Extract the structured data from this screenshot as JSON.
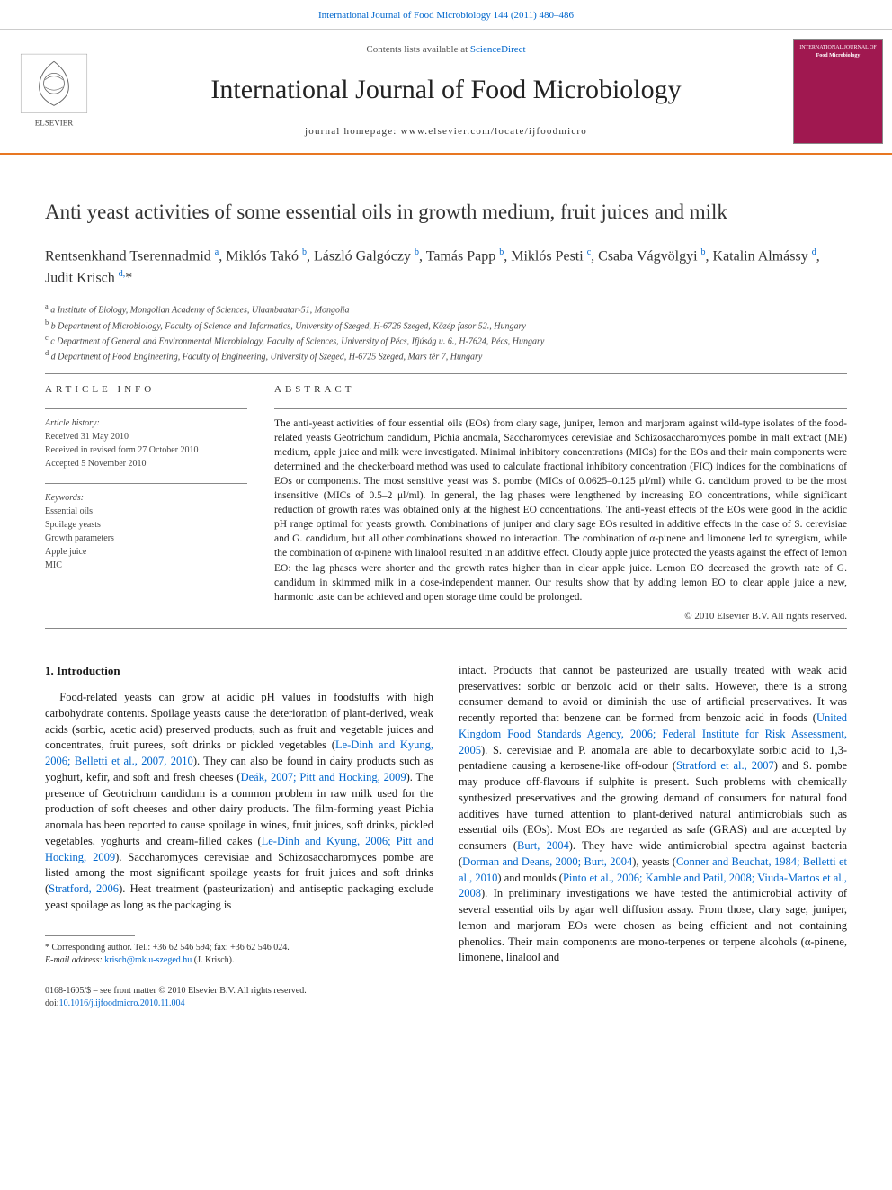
{
  "top_link": "International Journal of Food Microbiology 144 (2011) 480–486",
  "header": {
    "contents_prefix": "Contents lists available at ",
    "contents_link": "ScienceDirect",
    "journal_name": "International Journal of Food Microbiology",
    "homepage_prefix": "journal homepage: ",
    "homepage_url": "www.elsevier.com/locate/ijfoodmicro",
    "cover_label_1": "INTERNATIONAL JOURNAL OF",
    "cover_label_2": "Food Microbiology",
    "publisher": "ELSEVIER"
  },
  "article": {
    "title": "Anti yeast activities of some essential oils in growth medium, fruit juices and milk",
    "authors_html": "Rentsenkhand Tserennadmid <sup>a</sup>, Miklós Takó <sup>b</sup>, László Galgóczy <sup>b</sup>, Tamás Papp <sup>b</sup>, Miklós Pesti <sup>c</sup>, Csaba Vágvölgyi <sup>b</sup>, Katalin Almássy <sup>d</sup>, Judit Krisch <sup>d,</sup>*",
    "aff_a": "a  Institute of Biology, Mongolian Academy of Sciences, Ulaanbaatar-51, Mongolia",
    "aff_b": "b  Department of Microbiology, Faculty of Science and Informatics, University of Szeged, H-6726 Szeged, Közép fasor 52., Hungary",
    "aff_c": "c  Department of General and Environmental Microbiology, Faculty of Sciences, University of Pécs, Ifjúság u. 6., H-7624, Pécs, Hungary",
    "aff_d": "d  Department of Food Engineering, Faculty of Engineering, University of Szeged, H-6725 Szeged, Mars tér 7, Hungary"
  },
  "info": {
    "heading": "ARTICLE INFO",
    "history_label": "Article history:",
    "received": "Received 31 May 2010",
    "revised": "Received in revised form 27 October 2010",
    "accepted": "Accepted 5 November 2010",
    "keywords_label": "Keywords:",
    "kw1": "Essential oils",
    "kw2": "Spoilage yeasts",
    "kw3": "Growth parameters",
    "kw4": "Apple juice",
    "kw5": "MIC"
  },
  "abstract": {
    "heading": "ABSTRACT",
    "text": "The anti-yeast activities of four essential oils (EOs) from clary sage, juniper, lemon and marjoram against wild-type isolates of the food-related yeasts Geotrichum candidum, Pichia anomala, Saccharomyces cerevisiae and Schizosaccharomyces pombe in malt extract (ME) medium, apple juice and milk were investigated. Minimal inhibitory concentrations (MICs) for the EOs and their main components were determined and the checkerboard method was used to calculate fractional inhibitory concentration (FIC) indices for the combinations of EOs or components. The most sensitive yeast was S. pombe (MICs of 0.0625–0.125 μl/ml) while G. candidum proved to be the most insensitive (MICs of 0.5–2 μl/ml). In general, the lag phases were lengthened by increasing EO concentrations, while significant reduction of growth rates was obtained only at the highest EO concentrations. The anti-yeast effects of the EOs were good in the acidic pH range optimal for yeasts growth. Combinations of juniper and clary sage EOs resulted in additive effects in the case of S. cerevisiae and G. candidum, but all other combinations showed no interaction. The combination of α-pinene and limonene led to synergism, while the combination of α-pinene with linalool resulted in an additive effect. Cloudy apple juice protected the yeasts against the effect of lemon EO: the lag phases were shorter and the growth rates higher than in clear apple juice. Lemon EO decreased the growth rate of G. candidum in skimmed milk in a dose-independent manner. Our results show that by adding lemon EO to clear apple juice a new, harmonic taste can be achieved and open storage time could be prolonged.",
    "copyright": "© 2010 Elsevier B.V. All rights reserved."
  },
  "body": {
    "intro_heading": "1. Introduction",
    "p1_a": "Food-related yeasts can grow at acidic pH values in foodstuffs with high carbohydrate contents. Spoilage yeasts cause the deterioration of plant-derived, weak acids (sorbic, acetic acid) preserved products, such as fruit and vegetable juices and concentrates, fruit purees, soft drinks or pickled vegetables (",
    "c1": "Le-Dinh and Kyung, 2006; Belletti et al., 2007, 2010",
    "p1_b": "). They can also be found in dairy products such as yoghurt, kefir, and soft and fresh cheeses (",
    "c2": "Deák, 2007; Pitt and Hocking, 2009",
    "p1_c": "). The presence of Geotrichum candidum is a common problem in raw milk used for the production of soft cheeses and other dairy products. The film-forming yeast Pichia anomala has been reported to cause spoilage in wines, fruit juices, soft drinks, pickled vegetables, yoghurts and cream-filled cakes (",
    "c3": "Le-Dinh and Kyung, 2006; Pitt and Hocking, 2009",
    "p1_d": "). Saccharomyces cerevisiae and Schizosaccharomyces pombe are listed among the most significant spoilage yeasts for fruit juices and soft drinks (",
    "c4": "Stratford, 2006",
    "p1_e": "). Heat treatment (pasteurization) and antiseptic packaging exclude yeast spoilage as long as the packaging is",
    "p2_a": "intact. Products that cannot be pasteurized are usually treated with weak acid preservatives: sorbic or benzoic acid or their salts. However, there is a strong consumer demand to avoid or diminish the use of artificial preservatives. It was recently reported that benzene can be formed from benzoic acid in foods (",
    "c5": "United Kingdom Food Standards Agency, 2006; Federal Institute for Risk Assessment, 2005",
    "p2_b": "). S. cerevisiae and P. anomala are able to decarboxylate sorbic acid to 1,3-pentadiene causing a kerosene-like off-odour (",
    "c6": "Stratford et al., 2007",
    "p2_c": ") and S. pombe may produce off-flavours if sulphite is present. Such problems with chemically synthesized preservatives and the growing demand of consumers for natural food additives have turned attention to plant-derived natural antimicrobials such as essential oils (EOs). Most EOs are regarded as safe (GRAS) and are accepted by consumers (",
    "c7": "Burt, 2004",
    "p2_d": "). They have wide antimicrobial spectra against bacteria (",
    "c8": "Dorman and Deans, 2000; Burt, 2004",
    "p2_e": "), yeasts (",
    "c9": "Conner and Beuchat, 1984; Belletti et al., 2010",
    "p2_f": ") and moulds (",
    "c10": "Pinto et al., 2006; Kamble and Patil, 2008; Viuda-Martos et al., 2008",
    "p2_g": "). In preliminary investigations we have tested the antimicrobial activity of several essential oils by agar well diffusion assay. From those, clary sage, juniper, lemon and marjoram EOs were chosen as being efficient and not containing phenolics. Their main components are mono-terpenes or terpene alcohols (α-pinene, limonene, linalool and"
  },
  "footnote": {
    "corr": "* Corresponding author. Tel.: +36 62 546 594; fax: +36 62 546 024.",
    "email_label": "E-mail address: ",
    "email": "krisch@mk.u-szeged.hu",
    "email_suffix": " (J. Krisch)."
  },
  "footer": {
    "issn": "0168-1605/$ – see front matter © 2010 Elsevier B.V. All rights reserved.",
    "doi_label": "doi:",
    "doi": "10.1016/j.ijfoodmicro.2010.11.004"
  },
  "colors": {
    "accent": "#e87722",
    "link": "#0066cc",
    "cover": "#a01850"
  }
}
